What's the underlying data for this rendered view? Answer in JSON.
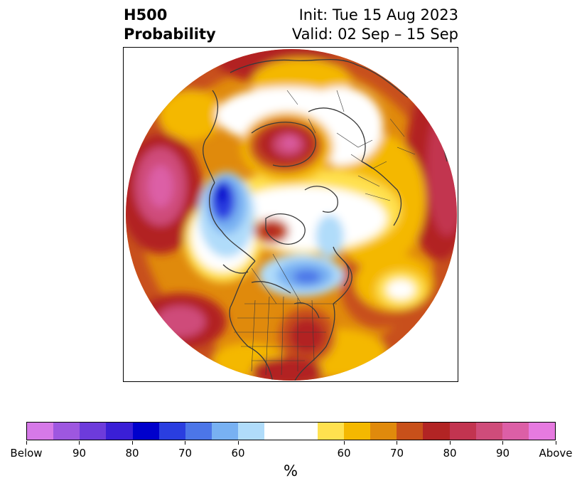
{
  "title": {
    "left_line1": "H500",
    "left_line2": "Probability",
    "right_line1": "Init: Tue 15 Aug 2023",
    "right_line2": "Valid: 02 Sep – 15 Sep"
  },
  "map": {
    "projection": "north-polar-stereographic",
    "features": [
      "coastlines",
      "country-borders",
      "us-state-borders"
    ]
  },
  "colorbar": {
    "unit": "%",
    "colors": [
      "#d679e8",
      "#9e57e0",
      "#6d3bdb",
      "#3a1fd6",
      "#0000cc",
      "#2a3ee0",
      "#4c76e8",
      "#78b1f2",
      "#b0dcfa",
      "#ffffff",
      "#ffffff",
      "#ffe14f",
      "#f4b800",
      "#e08a0c",
      "#c8501a",
      "#b22424",
      "#c23450",
      "#cf4c7a",
      "#dc5fa6",
      "#e67ae0"
    ],
    "ticks": [
      {
        "label": "Below",
        "index": 0
      },
      {
        "label": "90",
        "index": 2
      },
      {
        "label": "80",
        "index": 4
      },
      {
        "label": "70",
        "index": 6
      },
      {
        "label": "60",
        "index": 8
      },
      {
        "label": "60",
        "index": 12
      },
      {
        "label": "70",
        "index": 14
      },
      {
        "label": "80",
        "index": 16
      },
      {
        "label": "90",
        "index": 18
      },
      {
        "label": "Above",
        "index": 20
      }
    ]
  }
}
